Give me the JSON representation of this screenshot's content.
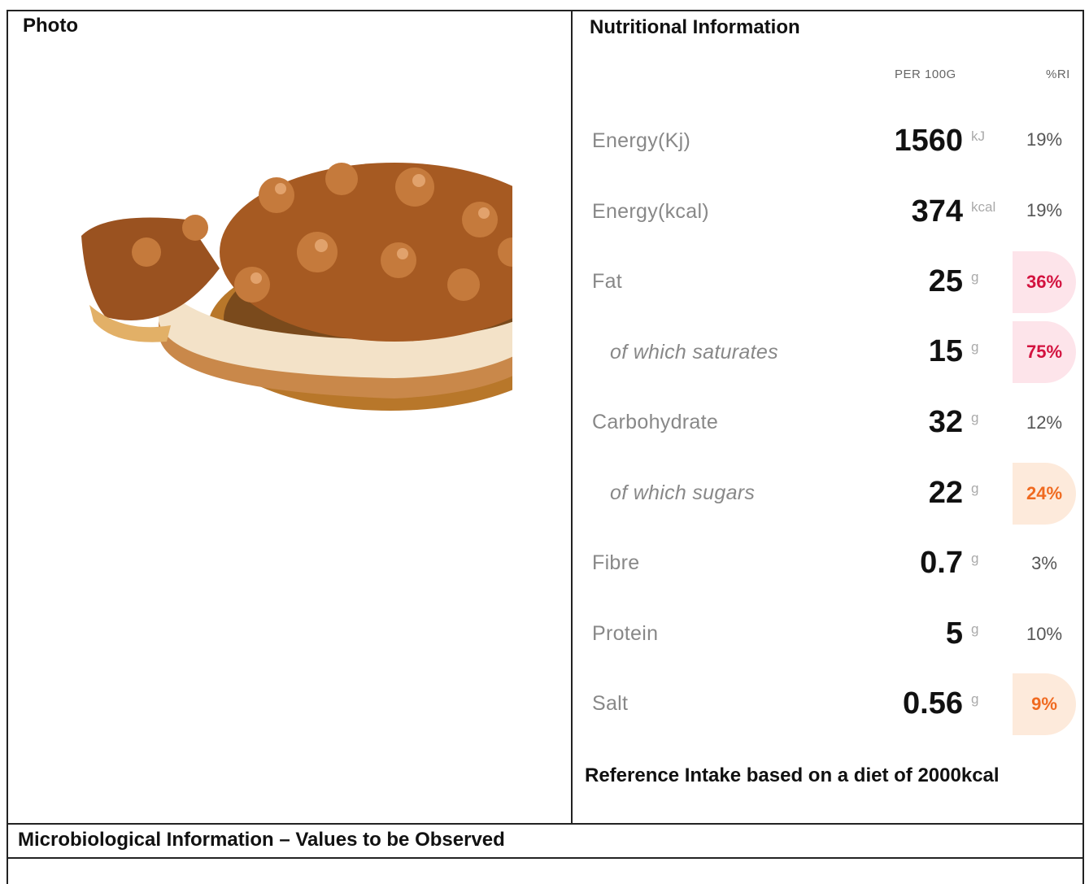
{
  "photo_title": "Photo",
  "nutrition": {
    "title": "Nutritional Information",
    "column_headers": [
      "PER 100G",
      "%RI"
    ],
    "rows": [
      {
        "label": "Energy(Kj)",
        "value": "1560",
        "unit": "kJ",
        "ri": "19%"
      },
      {
        "label": "Energy(kcal)",
        "value": "374",
        "unit": "kcal",
        "ri": "19%"
      },
      {
        "label": "Fat",
        "value": "25",
        "unit": "g",
        "ri": "36%"
      },
      {
        "label": "of which saturates",
        "value": "15",
        "unit": "g",
        "ri": "75%"
      },
      {
        "label": "Carbohydrate",
        "value": "32",
        "unit": "g",
        "ri": "12%"
      },
      {
        "label": "of which sugars",
        "value": "22",
        "unit": "g",
        "ri": "24%"
      },
      {
        "label": "Fibre",
        "value": "0.7",
        "unit": "g",
        "ri": "3%"
      },
      {
        "label": "Protein",
        "value": "5",
        "unit": "g",
        "ri": "10%"
      },
      {
        "label": "Salt",
        "value": "0.56",
        "unit": "g",
        "ri": "9%"
      }
    ],
    "footnote": "Reference Intake based on a diet of 2000kcal"
  },
  "microbiological_title": "Microbiological Information – Values to be Observed"
}
